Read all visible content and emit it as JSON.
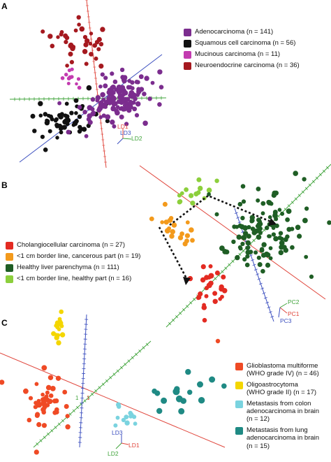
{
  "panels": [
    {
      "letter": "A"
    },
    {
      "letter": "B"
    },
    {
      "letter": "C"
    }
  ],
  "chart_data": [
    {
      "type": "scatter",
      "panel": "A",
      "title": "",
      "series": [
        {
          "name": "Adenocarcinoma (n = 141)",
          "color": "#7b2d8e"
        },
        {
          "name": "Squamous cell carcinoma (n = 56)",
          "color": "#111111"
        },
        {
          "name": "Mucinous carcinoma (n = 11)",
          "color": "#c33bb0"
        },
        {
          "name": "Neuroendocrine carcinoma (n = 36)",
          "color": "#a5191f"
        }
      ],
      "axes": [
        {
          "label": "LD1",
          "color": "#e0453b"
        },
        {
          "label": "LD3",
          "color": "#3c4fbf"
        },
        {
          "label": "LD2",
          "color": "#3fa33a"
        }
      ]
    },
    {
      "type": "scatter",
      "panel": "B",
      "title": "",
      "series": [
        {
          "name": "Cholangiocellular carcinoma (n = 27)",
          "color": "#e32b22"
        },
        {
          "name": "<1 cm border line, cancerous part (n = 19)",
          "color": "#f39a1c"
        },
        {
          "name": "Healthy liver parenchyma (n = 111)",
          "color": "#1f5e25"
        },
        {
          "name": "<1 cm border line, healthy part (n = 16)",
          "color": "#8ccf3c"
        }
      ],
      "axes": [
        {
          "label": "PC2",
          "color": "#3fa33a"
        },
        {
          "label": "PC1",
          "color": "#e0453b"
        },
        {
          "label": "PC3",
          "color": "#3c4fbf"
        }
      ]
    },
    {
      "type": "scatter",
      "panel": "C",
      "title": "",
      "series": [
        {
          "name": "Glioblastoma multiforme\n(WHO grade IV) (n = 46)",
          "color": "#ef4a25"
        },
        {
          "name": "Oligoastrocytoma\n(WHO grade II) (n = 17)",
          "color": "#f4d600"
        },
        {
          "name": "Metastasis from colon\nadenocarcinoma in brain\n(n = 12)",
          "color": "#7ad3df"
        },
        {
          "name": "Metastasis from lung\nadenocarcinoma in brain\n(n = 15)",
          "color": "#1f8a84"
        }
      ],
      "axes": [
        {
          "label": "LD3",
          "color": "#3c4fbf"
        },
        {
          "label": "LD1",
          "color": "#e0453b"
        },
        {
          "label": "LD2",
          "color": "#3fa33a"
        }
      ],
      "axis_tick_labels": [
        "1",
        "1"
      ]
    }
  ]
}
